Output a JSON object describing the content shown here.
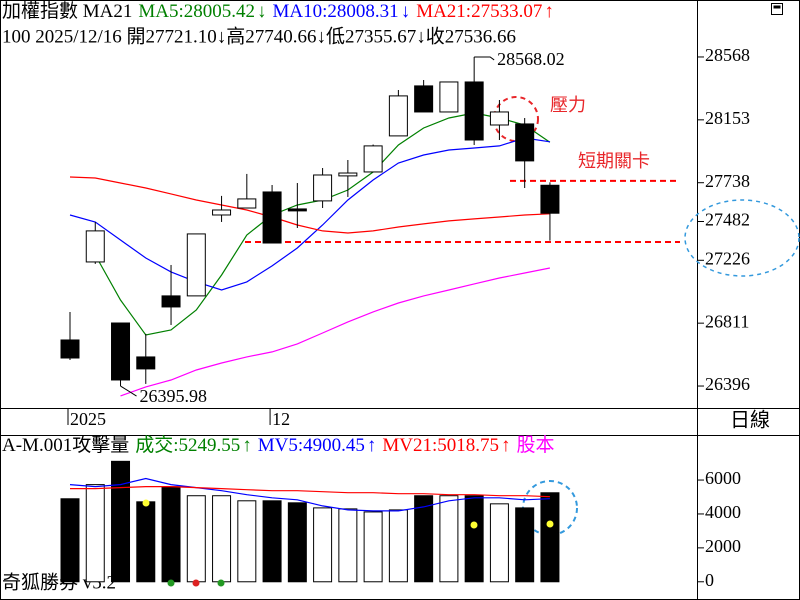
{
  "header": {
    "line1": [
      {
        "text": "加權指數 MA21",
        "color": "#000000"
      },
      {
        "text": "MA5:28005.42",
        "color": "#008000"
      },
      {
        "text": "↓",
        "color": "#008000"
      },
      {
        "text": "MA10:28008.31",
        "color": "#0000ff"
      },
      {
        "text": "↓",
        "color": "#0000ff"
      },
      {
        "text": "MA21:27533.07",
        "color": "#ff0000"
      },
      {
        "text": "↑",
        "color": "#ff0000"
      }
    ],
    "line2": "100 2025/12/16 開27721.10↓高27740.66↓低27355.67↓收27536.66"
  },
  "period_label": "日線",
  "footer": "奇狐勝券 v5.2",
  "chart_data": [
    {
      "type": "candlestick",
      "categories": [
        "2025",
        null,
        null,
        null,
        null,
        null,
        null,
        null,
        "12",
        null,
        null,
        null,
        null,
        null,
        null,
        null,
        null,
        null,
        null,
        null
      ],
      "open": [
        26700,
        27215,
        26812,
        26588,
        26991,
        26991,
        27525,
        27571,
        27677,
        27565,
        27618,
        27783,
        27809,
        28047,
        28377,
        28205,
        28403,
        28119,
        28126,
        27721.1
      ],
      "high": [
        26885,
        27479,
        26812,
        26740,
        27195,
        27400,
        27651,
        27796,
        27723,
        27736,
        27835,
        27888,
        27990,
        28350,
        28416,
        28403,
        28568.02,
        28284,
        28165,
        27740.66
      ],
      "low": [
        26568,
        27202,
        26395.98,
        26410,
        26799,
        26991,
        27479,
        27571,
        27340,
        27439,
        27571,
        27644,
        27809,
        28047,
        28205,
        28205,
        27987,
        28020,
        27703,
        27355.67
      ],
      "close": [
        26581,
        27420,
        26436,
        26509,
        26918,
        27400,
        27558,
        27631,
        27340,
        27552,
        27789,
        27802,
        27981,
        28311,
        28205,
        28403,
        28020,
        28205,
        27882,
        27536.66
      ],
      "up_color": "#ffffff",
      "down_color": "#000000",
      "series": [
        {
          "color": "#008000",
          "values": [
            null,
            27261,
            26964,
            26733,
            26766,
            26898,
            27129,
            27393,
            27525,
            27591,
            27624,
            27690,
            27809,
            27987,
            28099,
            28165,
            28198,
            28165,
            28119,
            28005.42
          ]
        },
        {
          "color": "#0000ff",
          "values": [
            27525,
            27479,
            27360,
            27241,
            27149,
            27083,
            27030,
            27083,
            27189,
            27307,
            27459,
            27624,
            27756,
            27868,
            27921,
            27954,
            27967,
            27981,
            28033,
            28008.31
          ]
        },
        {
          "color": "#ff0000",
          "values": [
            27776,
            27769,
            27736,
            27703,
            27664,
            27624,
            27591,
            27558,
            27512,
            27459,
            27420,
            27406,
            27420,
            27446,
            27466,
            27486,
            27499,
            27512,
            27525,
            27533.07
          ]
        },
        {
          "color": "#ff00ff",
          "values": [
            null,
            null,
            26331,
            26390,
            26436,
            26502,
            26548,
            26588,
            26621,
            26674,
            26746,
            26819,
            26885,
            26944,
            26991,
            27030,
            27070,
            27109,
            27142,
            27175
          ]
        }
      ],
      "levels": [
        27750,
        27347
      ],
      "level_color": "#ff0000",
      "annotations": [
        {
          "text": "壓力",
          "color": "#e8262a"
        },
        {
          "text": "短期關卡",
          "color": "#e8262a"
        }
      ],
      "ylim": [
        26251,
        28944
      ],
      "yticks": [
        28568,
        28153,
        27738,
        27482,
        27226,
        26811,
        26396
      ]
    },
    {
      "type": "bar",
      "title_parts": [
        {
          "text": "A-M.001攻擊量",
          "color": "#000000"
        },
        {
          "text": "成交:5249.55",
          "color": "#008000"
        },
        {
          "text": "↑",
          "color": "#008000"
        },
        {
          "text": "MV5:4900.45",
          "color": "#0000ff"
        },
        {
          "text": "↑",
          "color": "#0000ff"
        },
        {
          "text": "MV21:5018.75",
          "color": "#ff0000"
        },
        {
          "text": "↑",
          "color": "#ff0000"
        },
        {
          "text": "股本",
          "color": "#ff00ff"
        }
      ],
      "values": [
        4896,
        5731,
        7104,
        4716,
        5612,
        5075,
        5075,
        4776,
        4776,
        4657,
        4358,
        4299,
        4119,
        4239,
        5075,
        5075,
        5075,
        4597,
        4358,
        5249.55
      ],
      "series": [
        {
          "color": "#0000ff",
          "values": [
            5731,
            5612,
            5731,
            6090,
            5731,
            5552,
            5373,
            5134,
            4955,
            4836,
            4478,
            4239,
            4179,
            4179,
            4418,
            4776,
            4955,
            4955,
            4836,
            4900.45
          ]
        },
        {
          "color": "#ff0000",
          "values": [
            5493,
            5493,
            5552,
            5612,
            5612,
            5552,
            5493,
            5433,
            5373,
            5373,
            5313,
            5254,
            5254,
            5194,
            5194,
            5134,
            5134,
            5075,
            5075,
            5018.75
          ]
        }
      ],
      "ylim": [
        -1075,
        8657
      ],
      "yticks": [
        6000,
        4000,
        2000,
        0
      ]
    }
  ]
}
